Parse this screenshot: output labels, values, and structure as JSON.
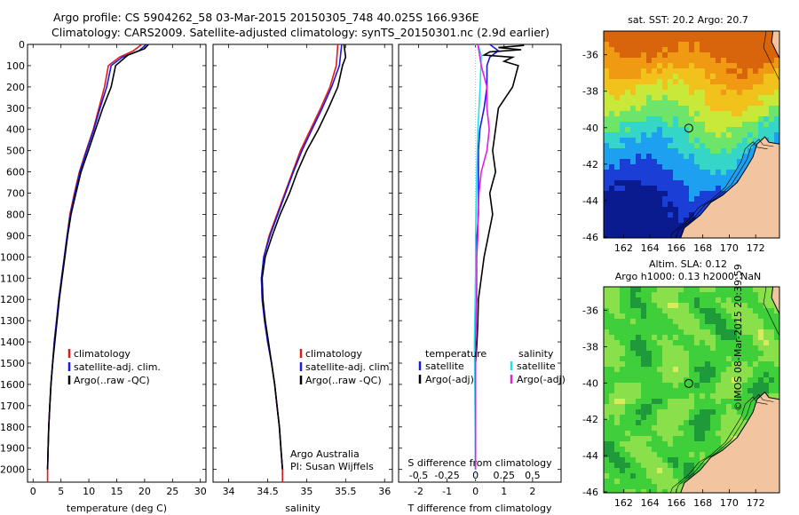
{
  "header": {
    "line1": "Argo profile: CS 5904262_58 03-Mar-2015 20150305_748 40.025S 166.936E",
    "line2": "Climatology: CARS2009. Satellite-adjusted climatology: synTS_20150301.nc (2.9d earlier)"
  },
  "colors": {
    "climatology": "#e0191b",
    "satellite": "#1a1ae0",
    "argo": "#000000",
    "s_satellite": "#22e0e8",
    "s_argo": "#e020e0"
  },
  "credit": {
    "line1": "Argo Australia",
    "line2": "PI: Susan Wijffels"
  },
  "watermark": "©IMOS 08-Mar-2015 20:39:59",
  "chart_data": [
    {
      "type": "line",
      "panel": "temperature",
      "xlabel": "temperature (deg C)",
      "ylim": [
        2060,
        0
      ],
      "xlim": [
        -1,
        31
      ],
      "x_ticks": [
        0,
        5,
        10,
        15,
        20,
        25,
        30
      ],
      "y_ticks": [
        0,
        100,
        200,
        300,
        400,
        500,
        600,
        700,
        800,
        900,
        1000,
        1100,
        1200,
        1300,
        1400,
        1500,
        1600,
        1700,
        1800,
        1900,
        2000
      ],
      "legend": [
        "climatology",
        "satellite-adj. clim.",
        "Argo(..raw -QC)"
      ],
      "series": [
        {
          "name": "climatology",
          "points": [
            [
              19.5,
              0
            ],
            [
              18,
              30
            ],
            [
              15.5,
              60
            ],
            [
              13.5,
              100
            ],
            [
              12.8,
              200
            ],
            [
              11.8,
              300
            ],
            [
              10.8,
              400
            ],
            [
              9.5,
              500
            ],
            [
              8.3,
              600
            ],
            [
              7.4,
              700
            ],
            [
              6.6,
              800
            ],
            [
              6.1,
              900
            ],
            [
              5.6,
              1000
            ],
            [
              5.1,
              1100
            ],
            [
              4.6,
              1200
            ],
            [
              4.2,
              1300
            ],
            [
              3.8,
              1400
            ],
            [
              3.5,
              1500
            ],
            [
              3.2,
              1600
            ],
            [
              3.0,
              1700
            ],
            [
              2.8,
              1800
            ],
            [
              2.7,
              1900
            ],
            [
              2.6,
              2000
            ],
            [
              2.6,
              2060
            ]
          ]
        },
        {
          "name": "satellite-adj. clim.",
          "points": [
            [
              20.3,
              0
            ],
            [
              19,
              30
            ],
            [
              16,
              60
            ],
            [
              14,
              100
            ],
            [
              13.2,
              200
            ],
            [
              12,
              300
            ],
            [
              10.9,
              400
            ],
            [
              9.6,
              500
            ],
            [
              8.4,
              600
            ],
            [
              7.5,
              700
            ],
            [
              6.7,
              800
            ],
            [
              6.1,
              900
            ],
            [
              5.6,
              1000
            ],
            [
              5.1,
              1100
            ],
            [
              4.6,
              1200
            ],
            [
              4.2,
              1300
            ],
            [
              3.8,
              1400
            ],
            [
              3.5,
              1500
            ],
            [
              3.2,
              1600
            ],
            [
              3.0,
              1700
            ],
            [
              2.8,
              1800
            ],
            [
              2.7,
              1900
            ],
            [
              2.6,
              2000
            ]
          ]
        },
        {
          "name": "Argo(..raw -QC)",
          "points": [
            [
              20.7,
              0
            ],
            [
              20,
              20
            ],
            [
              17,
              50
            ],
            [
              14.8,
              100
            ],
            [
              14,
              200
            ],
            [
              12.5,
              300
            ],
            [
              11.2,
              400
            ],
            [
              9.9,
              500
            ],
            [
              8.6,
              600
            ],
            [
              7.7,
              700
            ],
            [
              6.8,
              800
            ],
            [
              6.2,
              900
            ],
            [
              5.7,
              1000
            ],
            [
              5.2,
              1100
            ],
            [
              4.7,
              1200
            ],
            [
              4.3,
              1300
            ],
            [
              3.9,
              1400
            ],
            [
              3.5,
              1500
            ],
            [
              3.2,
              1600
            ],
            [
              3.0,
              1700
            ],
            [
              2.8,
              1800
            ],
            [
              2.7,
              1900
            ],
            [
              2.6,
              2000
            ]
          ]
        }
      ]
    },
    {
      "type": "line",
      "panel": "salinity",
      "xlabel": "salinity",
      "ylim": [
        2060,
        0
      ],
      "xlim": [
        33.8,
        36.1
      ],
      "x_ticks": [
        34,
        34.5,
        35,
        35.5,
        36
      ],
      "x_tick_labels": [
        "34",
        "34.5",
        "35",
        "35.5",
        "36"
      ],
      "legend": [
        "climatology",
        "satellite-adj. clim.",
        "Argo(..raw -QC)"
      ],
      "series": [
        {
          "name": "climatology",
          "points": [
            [
              35.4,
              0
            ],
            [
              35.38,
              100
            ],
            [
              35.3,
              200
            ],
            [
              35.18,
              300
            ],
            [
              35.05,
              400
            ],
            [
              34.92,
              500
            ],
            [
              34.82,
              600
            ],
            [
              34.72,
              700
            ],
            [
              34.62,
              800
            ],
            [
              34.52,
              900
            ],
            [
              34.45,
              1000
            ],
            [
              34.42,
              1100
            ],
            [
              34.43,
              1200
            ],
            [
              34.46,
              1300
            ],
            [
              34.5,
              1400
            ],
            [
              34.55,
              1500
            ],
            [
              34.59,
              1600
            ],
            [
              34.62,
              1700
            ],
            [
              34.65,
              1800
            ],
            [
              34.67,
              1900
            ],
            [
              34.69,
              2000
            ],
            [
              34.69,
              2060
            ]
          ]
        },
        {
          "name": "satellite-adj. clim.",
          "points": [
            [
              35.45,
              0
            ],
            [
              35.42,
              100
            ],
            [
              35.32,
              200
            ],
            [
              35.2,
              300
            ],
            [
              35.07,
              400
            ],
            [
              34.94,
              500
            ],
            [
              34.83,
              600
            ],
            [
              34.73,
              700
            ],
            [
              34.63,
              800
            ],
            [
              34.53,
              900
            ],
            [
              34.45,
              1000
            ],
            [
              34.42,
              1100
            ],
            [
              34.43,
              1200
            ],
            [
              34.46,
              1300
            ],
            [
              34.5,
              1400
            ],
            [
              34.55,
              1500
            ],
            [
              34.59,
              1600
            ],
            [
              34.62,
              1700
            ],
            [
              34.65,
              1800
            ],
            [
              34.67,
              1900
            ],
            [
              34.69,
              2000
            ]
          ]
        },
        {
          "name": "Argo(..raw -QC)",
          "points": [
            [
              35.48,
              0
            ],
            [
              35.5,
              60
            ],
            [
              35.46,
              100
            ],
            [
              35.4,
              200
            ],
            [
              35.28,
              300
            ],
            [
              35.15,
              400
            ],
            [
              35.0,
              500
            ],
            [
              34.88,
              600
            ],
            [
              34.78,
              700
            ],
            [
              34.66,
              800
            ],
            [
              34.56,
              900
            ],
            [
              34.47,
              1000
            ],
            [
              34.43,
              1100
            ],
            [
              34.44,
              1200
            ],
            [
              34.47,
              1300
            ],
            [
              34.51,
              1400
            ],
            [
              34.55,
              1500
            ],
            [
              34.59,
              1600
            ],
            [
              34.62,
              1700
            ],
            [
              34.65,
              1800
            ],
            [
              34.67,
              1900
            ],
            [
              34.69,
              2000
            ]
          ]
        }
      ]
    },
    {
      "type": "line",
      "panel": "difference",
      "xlabel": "T difference from climatology",
      "xlabel_top": "S difference from climatology",
      "ylim": [
        2060,
        0
      ],
      "xlim": [
        -2.7,
        3.0
      ],
      "x_ticks": [
        -2,
        -1,
        0,
        1,
        2
      ],
      "x_tick_labels": [
        "-2",
        "-1",
        "0",
        "1",
        "2"
      ],
      "x_ticks_top": [
        -0.5,
        -0.25,
        0,
        0.25,
        0.5
      ],
      "x_tick_labels_top": [
        "-0.5",
        "-0.25",
        "0",
        "0.25",
        "0.5"
      ],
      "legend": {
        "temperature_title": "temperature",
        "salinity_title": "salinity",
        "satellite": "satellite",
        "argo_t": "Argo(-adj)",
        "argo_s": "Argo(-adj)"
      },
      "series": [
        {
          "name": "T satellite",
          "points": [
            [
              0.5,
              0
            ],
            [
              0.8,
              30
            ],
            [
              0.5,
              60
            ],
            [
              0.4,
              100
            ],
            [
              0.4,
              200
            ],
            [
              0.3,
              300
            ],
            [
              0.15,
              400
            ],
            [
              0.1,
              500
            ],
            [
              0.1,
              600
            ],
            [
              0.1,
              700
            ],
            [
              0.1,
              800
            ],
            [
              0.05,
              900
            ],
            [
              0.03,
              1000
            ],
            [
              0,
              1100
            ],
            [
              0,
              1200
            ],
            [
              0,
              1300
            ],
            [
              0,
              2000
            ]
          ]
        },
        {
          "name": "T Argo(-adj)",
          "points": [
            [
              1.7,
              5
            ],
            [
              0.8,
              15
            ],
            [
              1.6,
              25
            ],
            [
              0.5,
              35
            ],
            [
              0.3,
              50
            ],
            [
              1.3,
              60
            ],
            [
              1.0,
              80
            ],
            [
              1.5,
              100
            ],
            [
              1.3,
              200
            ],
            [
              0.8,
              300
            ],
            [
              0.7,
              400
            ],
            [
              0.6,
              500
            ],
            [
              0.7,
              600
            ],
            [
              0.5,
              700
            ],
            [
              0.6,
              800
            ],
            [
              0.45,
              900
            ],
            [
              0.3,
              1000
            ],
            [
              0.2,
              1100
            ],
            [
              0.1,
              1200
            ],
            [
              0.08,
              1300
            ],
            [
              0.05,
              1400
            ],
            [
              0,
              1500
            ],
            [
              0,
              2000
            ]
          ]
        },
        {
          "name": "S satellite",
          "points": [
            [
              0.02,
              0
            ],
            [
              0.05,
              50
            ],
            [
              0.04,
              200
            ],
            [
              0.02,
              400
            ],
            [
              0.01,
              600
            ],
            [
              0,
              900
            ],
            [
              0,
              1100
            ],
            [
              -0.01,
              1400
            ],
            [
              0,
              2000
            ]
          ]
        },
        {
          "name": "S Argo(-adj)",
          "points": [
            [
              0.02,
              0
            ],
            [
              0.05,
              100
            ],
            [
              0.1,
              200
            ],
            [
              0.1,
              300
            ],
            [
              0.12,
              400
            ],
            [
              0.1,
              500
            ],
            [
              0.05,
              600
            ],
            [
              0.03,
              700
            ],
            [
              0.02,
              800
            ],
            [
              0.02,
              900
            ],
            [
              0.01,
              1000
            ],
            [
              0.01,
              1200
            ],
            [
              0,
              1400
            ],
            [
              0,
              2000
            ]
          ]
        }
      ]
    },
    {
      "type": "heatmap",
      "panel": "sst-map",
      "title": "sat. SST: 20.2  Argo: 20.7",
      "x_ticks": [
        162,
        164,
        166,
        168,
        170,
        172
      ],
      "y_ticks": [
        -36,
        -38,
        -40,
        -42,
        -44,
        -46
      ],
      "marker": {
        "lon": 166.936,
        "lat": -40.025
      }
    },
    {
      "type": "heatmap",
      "panel": "sla-map",
      "title_line1": "Altim. SLA: 0.12",
      "title_line2": "Argo h1000: 0.13  h2000: NaN",
      "x_ticks": [
        162,
        164,
        166,
        168,
        170,
        172
      ],
      "y_ticks": [
        -36,
        -38,
        -40,
        -42,
        -44,
        -46
      ],
      "marker": {
        "lon": 166.936,
        "lat": -40.025
      }
    }
  ]
}
